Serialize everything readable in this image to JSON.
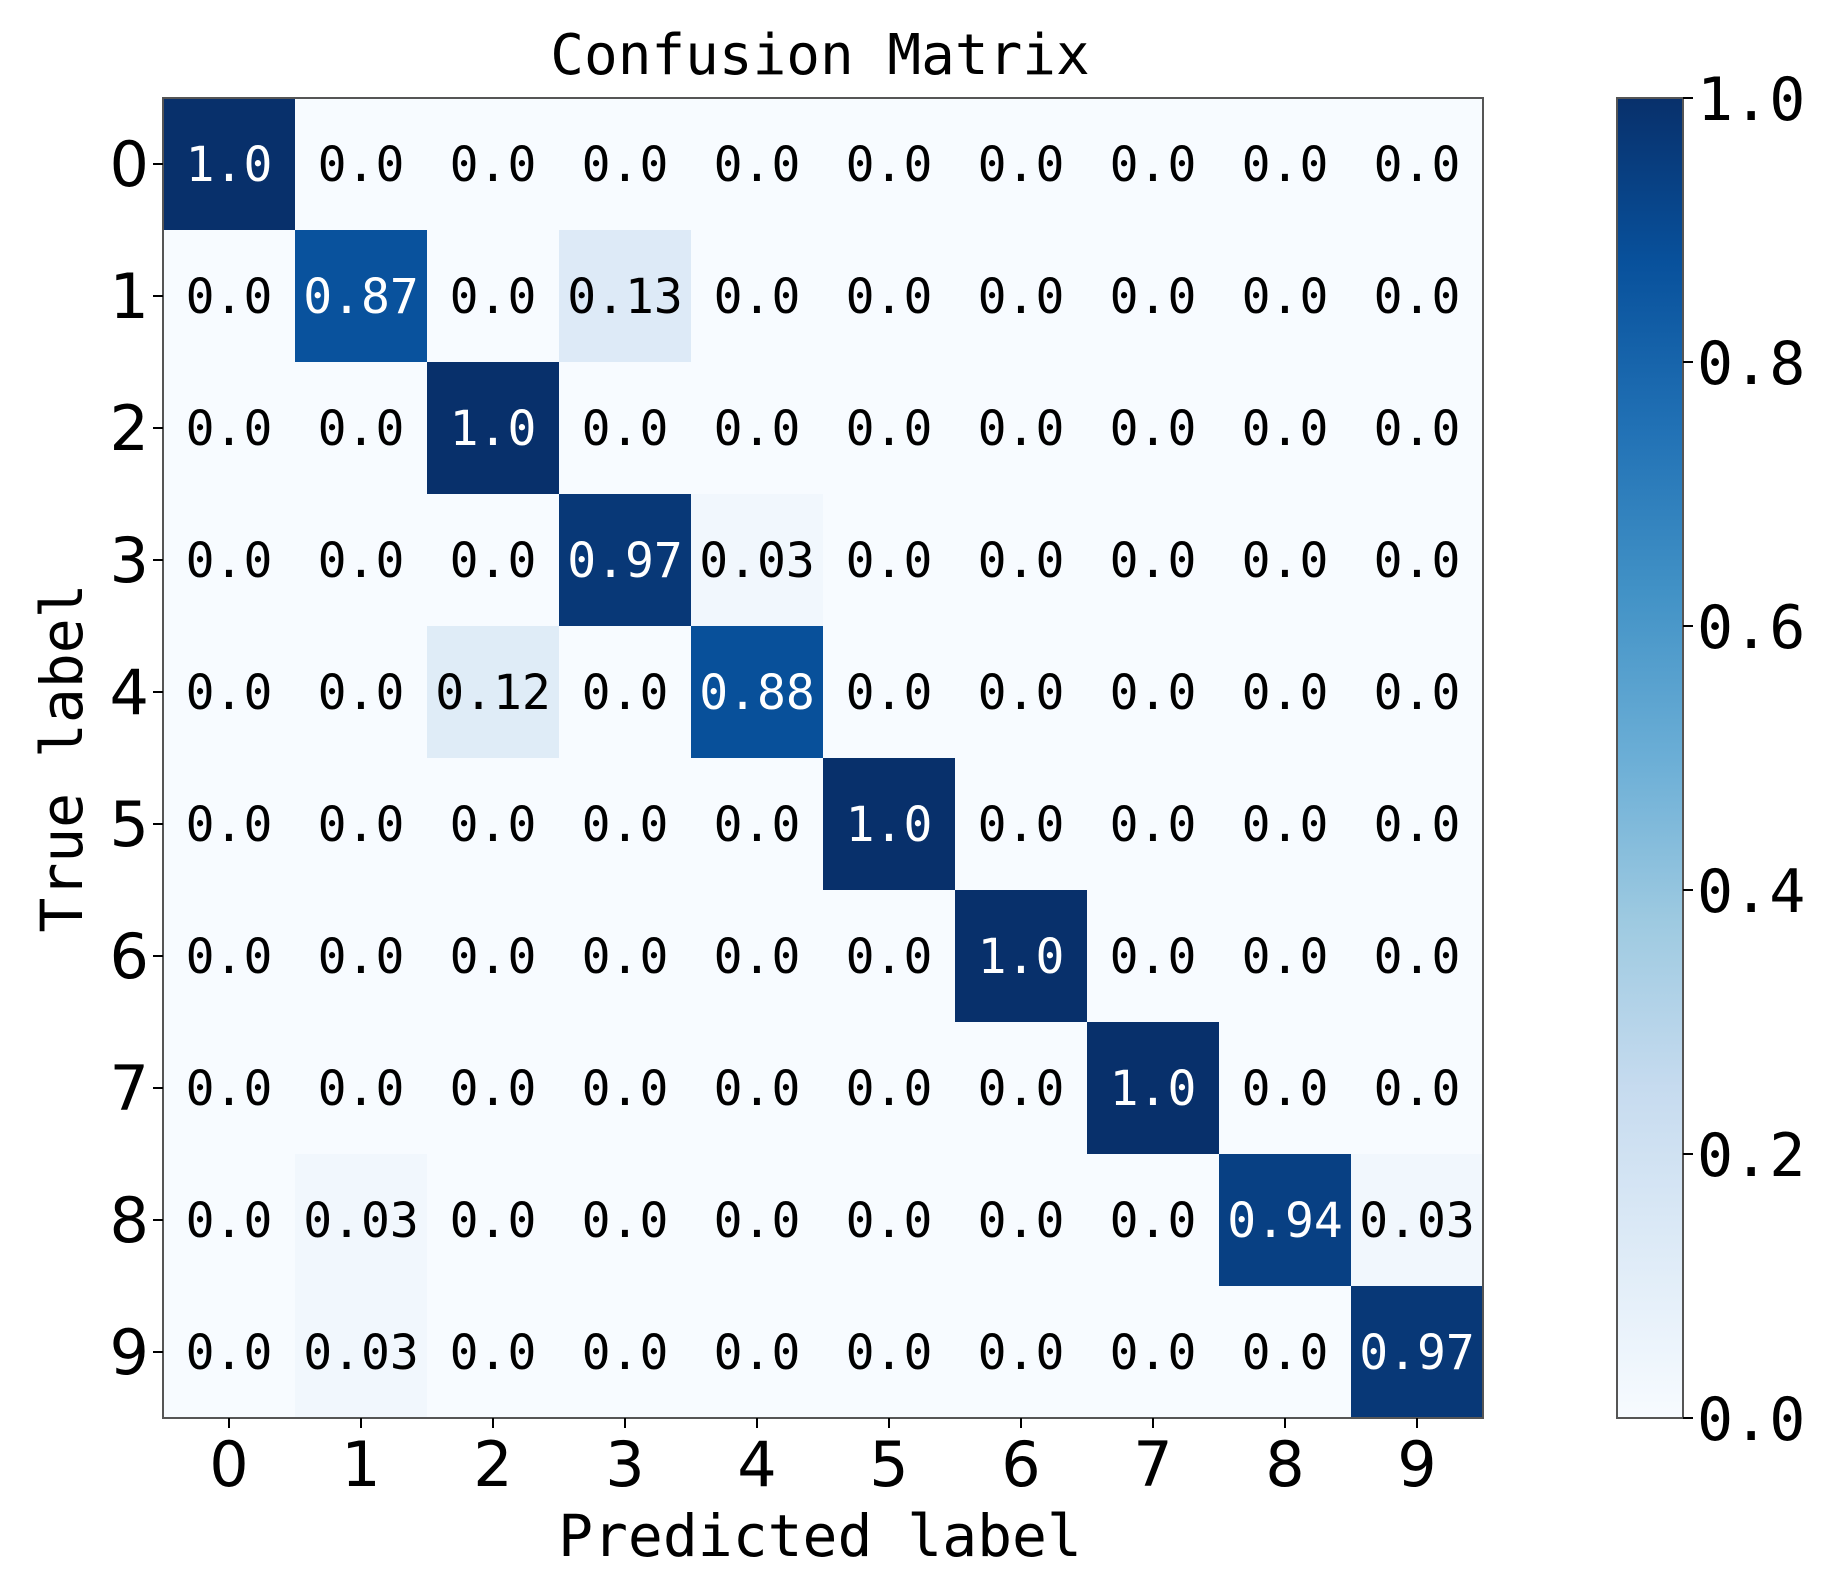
{
  "chart_data": {
    "type": "heatmap",
    "title": "Confusion Matrix",
    "xlabel": "Predicted label",
    "ylabel": "True label",
    "x_ticks": [
      "0",
      "1",
      "2",
      "3",
      "4",
      "5",
      "6",
      "7",
      "8",
      "9"
    ],
    "y_ticks": [
      "0",
      "1",
      "2",
      "3",
      "4",
      "5",
      "6",
      "7",
      "8",
      "9"
    ],
    "matrix": [
      [
        1.0,
        0.0,
        0.0,
        0.0,
        0.0,
        0.0,
        0.0,
        0.0,
        0.0,
        0.0
      ],
      [
        0.0,
        0.87,
        0.0,
        0.13,
        0.0,
        0.0,
        0.0,
        0.0,
        0.0,
        0.0
      ],
      [
        0.0,
        0.0,
        1.0,
        0.0,
        0.0,
        0.0,
        0.0,
        0.0,
        0.0,
        0.0
      ],
      [
        0.0,
        0.0,
        0.0,
        0.97,
        0.03,
        0.0,
        0.0,
        0.0,
        0.0,
        0.0
      ],
      [
        0.0,
        0.0,
        0.12,
        0.0,
        0.88,
        0.0,
        0.0,
        0.0,
        0.0,
        0.0
      ],
      [
        0.0,
        0.0,
        0.0,
        0.0,
        0.0,
        1.0,
        0.0,
        0.0,
        0.0,
        0.0
      ],
      [
        0.0,
        0.0,
        0.0,
        0.0,
        0.0,
        0.0,
        1.0,
        0.0,
        0.0,
        0.0
      ],
      [
        0.0,
        0.0,
        0.0,
        0.0,
        0.0,
        0.0,
        0.0,
        1.0,
        0.0,
        0.0
      ],
      [
        0.0,
        0.03,
        0.0,
        0.0,
        0.0,
        0.0,
        0.0,
        0.0,
        0.94,
        0.03
      ],
      [
        0.0,
        0.03,
        0.0,
        0.0,
        0.0,
        0.0,
        0.0,
        0.0,
        0.0,
        0.97
      ]
    ],
    "cell_labels": [
      [
        "1.0",
        "0.0",
        "0.0",
        "0.0",
        "0.0",
        "0.0",
        "0.0",
        "0.0",
        "0.0",
        "0.0"
      ],
      [
        "0.0",
        "0.87",
        "0.0",
        "0.13",
        "0.0",
        "0.0",
        "0.0",
        "0.0",
        "0.0",
        "0.0"
      ],
      [
        "0.0",
        "0.0",
        "1.0",
        "0.0",
        "0.0",
        "0.0",
        "0.0",
        "0.0",
        "0.0",
        "0.0"
      ],
      [
        "0.0",
        "0.0",
        "0.0",
        "0.97",
        "0.03",
        "0.0",
        "0.0",
        "0.0",
        "0.0",
        "0.0"
      ],
      [
        "0.0",
        "0.0",
        "0.12",
        "0.0",
        "0.88",
        "0.0",
        "0.0",
        "0.0",
        "0.0",
        "0.0"
      ],
      [
        "0.0",
        "0.0",
        "0.0",
        "0.0",
        "0.0",
        "1.0",
        "0.0",
        "0.0",
        "0.0",
        "0.0"
      ],
      [
        "0.0",
        "0.0",
        "0.0",
        "0.0",
        "0.0",
        "0.0",
        "1.0",
        "0.0",
        "0.0",
        "0.0"
      ],
      [
        "0.0",
        "0.0",
        "0.0",
        "0.0",
        "0.0",
        "0.0",
        "0.0",
        "1.0",
        "0.0",
        "0.0"
      ],
      [
        "0.0",
        "0.03",
        "0.0",
        "0.0",
        "0.0",
        "0.0",
        "0.0",
        "0.0",
        "0.94",
        "0.03"
      ],
      [
        "0.0",
        "0.03",
        "0.0",
        "0.0",
        "0.0",
        "0.0",
        "0.0",
        "0.0",
        "0.0",
        "0.97"
      ]
    ],
    "colorbar": {
      "range": [
        0.0,
        1.0
      ],
      "ticks": [
        "0.0",
        "0.2",
        "0.4",
        "0.6",
        "0.8",
        "1.0"
      ],
      "colormap": [
        "#f7fbff",
        "#deebf7",
        "#c6dbef",
        "#9ecae1",
        "#6baed6",
        "#4292c6",
        "#2171b5",
        "#08519c",
        "#08306b"
      ]
    },
    "grid": false
  }
}
